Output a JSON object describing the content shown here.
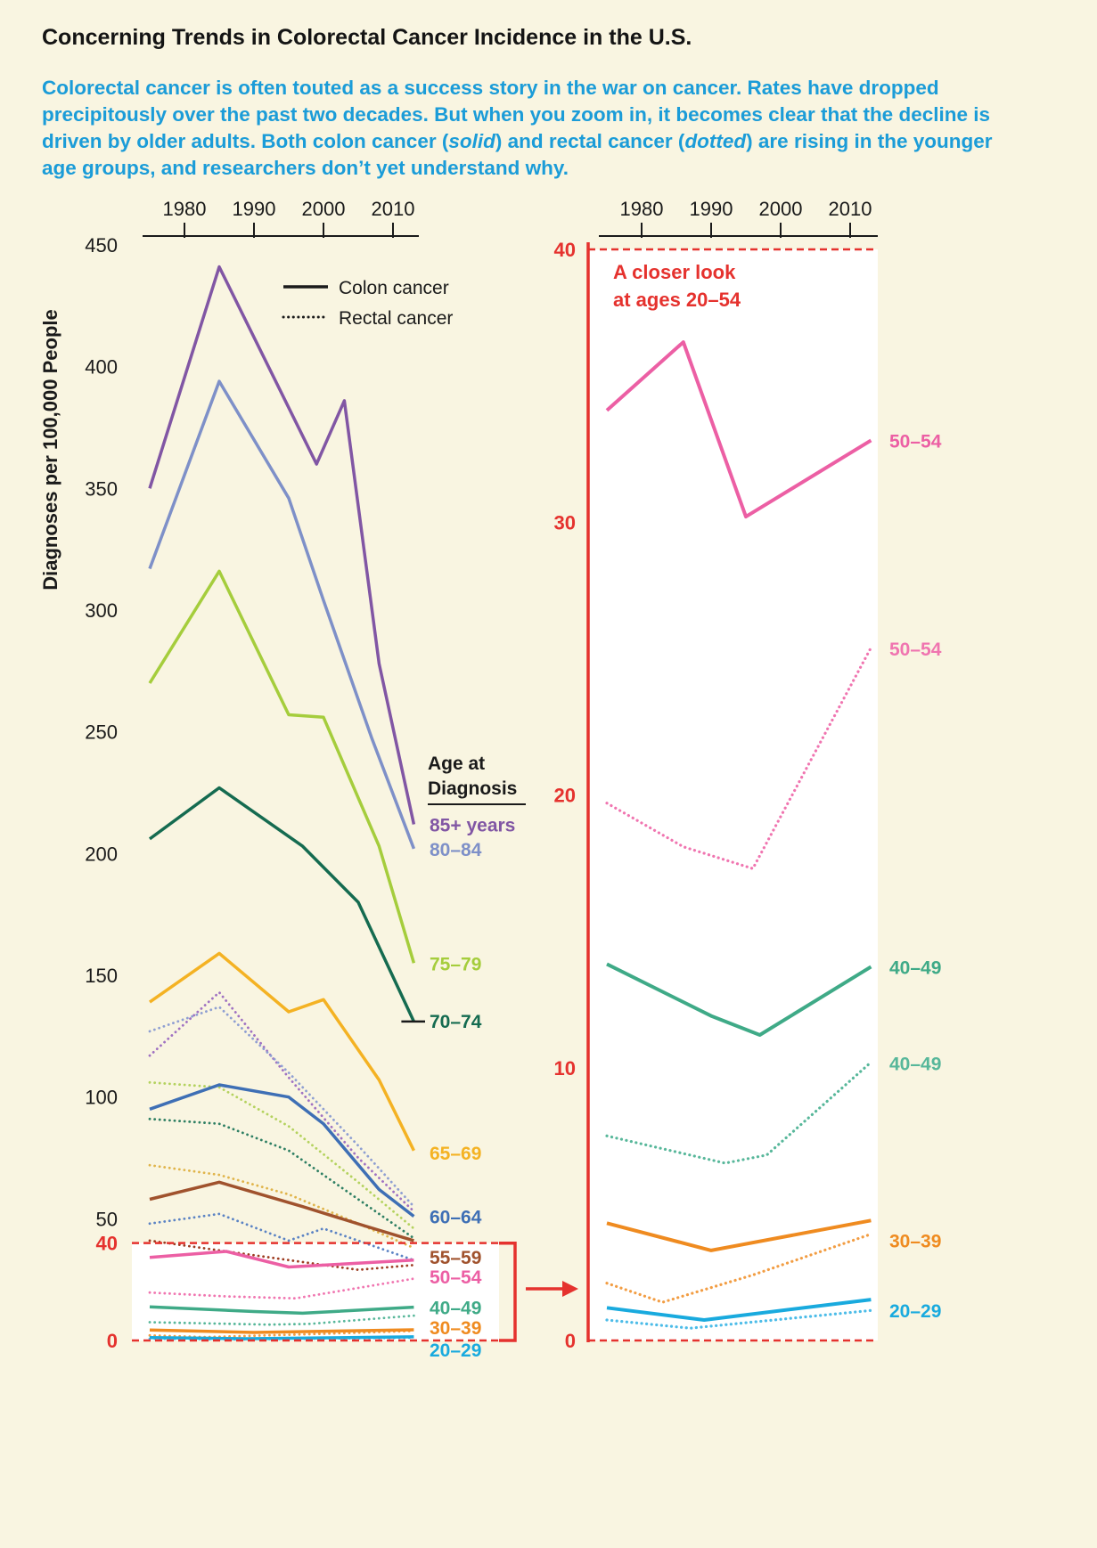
{
  "page": {
    "background": "#f9f5e1",
    "title": "Concerning Trends in Colorectal Cancer Incidence in the U.S.",
    "intro": {
      "color": "#1b9cd8",
      "part1": "Colorectal cancer is often touted as a success story in the war on cancer. Rates have dropped precipitously over the past two decades. But when you zoom in, it becomes clear that the decline is driven by older adults. Both colon cancer (",
      "em1": "solid",
      "part2": ") and rectal cancer (",
      "em2": "dotted",
      "part3": ") are rising in the younger age groups, and researchers don’t yet understand why."
    }
  },
  "colors": {
    "accent_red": "#e5322e",
    "axis_black": "#1a1a1a",
    "intro_blue": "#1b9cd8",
    "age_85plus": "#8156a4",
    "age_80_84": "#7e90c8",
    "age_75_79": "#a5cd3c",
    "age_70_74": "#156b50",
    "age_65_69": "#f4b223",
    "age_60_64": "#3e6fb5",
    "age_55_59": "#a0522d",
    "age_50_54": "#ec5fa4",
    "age_40_49": "#3faa87",
    "age_30_39": "#ef8b20",
    "age_20_29": "#19aade"
  },
  "chart_data": [
    {
      "id": "main",
      "type": "line",
      "ylabel": "Diagnoses per 100,000 People",
      "xlim": [
        1973.5,
        2015
      ],
      "ylim": [
        0,
        450
      ],
      "x_ticks": [
        "1980",
        "1990",
        "2000",
        "2010"
      ],
      "y_ticks": [
        50,
        100,
        150,
        200,
        250,
        300,
        350,
        400,
        450
      ],
      "y_ticks_highlight": [
        40,
        0
      ],
      "grid": false,
      "legend": [
        {
          "label": "Colon cancer",
          "style": "solid"
        },
        {
          "label": "Rectal cancer",
          "style": "dotted"
        }
      ],
      "age_key_title": [
        "Age at",
        "Diagnosis"
      ],
      "highlight_band": {
        "y_from": 0,
        "y_to": 40,
        "note": "A closer look at ages 20–54"
      },
      "series": [
        {
          "age": "85+ years",
          "cancer": "colon",
          "style": "solid",
          "color": "#8156a4",
          "label": "85+ years",
          "x": [
            1975,
            1985,
            1999,
            2003,
            2008,
            2013
          ],
          "y": [
            350,
            441,
            360,
            386,
            278,
            212
          ]
        },
        {
          "age": "80–84",
          "cancer": "colon",
          "style": "solid",
          "color": "#7e90c8",
          "label": "80–84",
          "x": [
            1975,
            1985,
            1995,
            2000,
            2007,
            2013
          ],
          "y": [
            317,
            394,
            346,
            304,
            247,
            202
          ]
        },
        {
          "age": "75–79",
          "cancer": "colon",
          "style": "solid",
          "color": "#a5cd3c",
          "label": "75–79",
          "x": [
            1975,
            1985,
            1995,
            2000,
            2008,
            2013
          ],
          "y": [
            270,
            316,
            257,
            256,
            203,
            155
          ]
        },
        {
          "age": "70–74",
          "cancer": "colon",
          "style": "solid",
          "color": "#156b50",
          "label": "70–74",
          "leader": true,
          "x": [
            1975,
            1985,
            1997,
            2005,
            2013
          ],
          "y": [
            206,
            227,
            203,
            180,
            131
          ]
        },
        {
          "age": "65–69",
          "cancer": "colon",
          "style": "solid",
          "color": "#f4b223",
          "label": "65–69",
          "x": [
            1975,
            1985,
            1995,
            2000,
            2008,
            2013
          ],
          "y": [
            139,
            159,
            135,
            140,
            107,
            78
          ]
        },
        {
          "age": "60–64",
          "cancer": "colon",
          "style": "solid",
          "color": "#3e6fb5",
          "label": "60–64",
          "x": [
            1975,
            1985,
            1995,
            2000,
            2008,
            2013
          ],
          "y": [
            95,
            105,
            100,
            89,
            62,
            51
          ]
        },
        {
          "age": "55–59",
          "cancer": "colon",
          "style": "solid",
          "color": "#a0522d",
          "label": "55–59",
          "x": [
            1975,
            1985,
            1997,
            2006,
            2013
          ],
          "y": [
            58,
            65,
            55,
            47,
            41
          ]
        },
        {
          "age": "50–54",
          "cancer": "colon",
          "style": "solid",
          "color": "#ec5fa4",
          "label": "50–54",
          "x": [
            1975,
            1986,
            1995,
            2013
          ],
          "y": [
            34.1,
            36.6,
            30.2,
            33
          ]
        },
        {
          "age": "40–49",
          "cancer": "colon",
          "style": "solid",
          "color": "#3faa87",
          "label": "40–49",
          "x": [
            1975,
            1990,
            1997,
            2013
          ],
          "y": [
            13.8,
            11.9,
            11.2,
            13.7
          ]
        },
        {
          "age": "30–39",
          "cancer": "colon",
          "style": "solid",
          "color": "#ef8b20",
          "label": "30–39",
          "x": [
            1975,
            1990,
            2013
          ],
          "y": [
            4.3,
            3.3,
            4.4
          ]
        },
        {
          "age": "20–29",
          "cancer": "colon",
          "style": "solid",
          "color": "#19aade",
          "label": "20–29",
          "x": [
            1975,
            1989,
            2013
          ],
          "y": [
            1.2,
            0.75,
            1.5
          ]
        },
        {
          "age": "85+ years",
          "cancer": "rectal",
          "style": "dotted",
          "color": "#a072c2",
          "x": [
            1975,
            1985,
            1995,
            2005,
            2013
          ],
          "y": [
            117,
            143,
            108,
            75,
            53
          ]
        },
        {
          "age": "80–84",
          "cancer": "rectal",
          "style": "dotted",
          "color": "#8f9fd2",
          "x": [
            1975,
            1985,
            1995,
            2005,
            2013
          ],
          "y": [
            127,
            137,
            110,
            80,
            55
          ]
        },
        {
          "age": "75–79",
          "cancer": "rectal",
          "style": "dotted",
          "color": "#b4d25e",
          "x": [
            1975,
            1985,
            1995,
            2005,
            2013
          ],
          "y": [
            106,
            104,
            88,
            65,
            46
          ]
        },
        {
          "age": "70–74",
          "cancer": "rectal",
          "style": "dotted",
          "color": "#2e7f63",
          "x": [
            1975,
            1985,
            1995,
            2005,
            2013
          ],
          "y": [
            91,
            89,
            78,
            58,
            42
          ]
        },
        {
          "age": "65–69",
          "cancer": "rectal",
          "style": "dotted",
          "color": "#e0b44a",
          "x": [
            1975,
            1985,
            1995,
            2005,
            2013
          ],
          "y": [
            72,
            68,
            60,
            48,
            38
          ]
        },
        {
          "age": "60–64",
          "cancer": "rectal",
          "style": "dotted",
          "color": "#5b83c4",
          "x": [
            1975,
            1985,
            1995,
            2000,
            2013
          ],
          "y": [
            48,
            52,
            41,
            46,
            33
          ]
        },
        {
          "age": "55–59",
          "cancer": "rectal",
          "style": "dotted",
          "color": "#9d3b20",
          "x": [
            1975,
            1990,
            2005,
            2013
          ],
          "y": [
            41,
            35,
            29,
            31
          ]
        },
        {
          "age": "50–54",
          "cancer": "rectal",
          "style": "dotted",
          "color": "#f075b0",
          "x": [
            1975,
            1986,
            1996,
            2013
          ],
          "y": [
            19.7,
            18.1,
            17.3,
            25.4
          ]
        },
        {
          "age": "40–49",
          "cancer": "rectal",
          "style": "dotted",
          "color": "#57b79a",
          "x": [
            1975,
            1992,
            1998,
            2013
          ],
          "y": [
            7.5,
            6.5,
            6.8,
            10.2
          ]
        },
        {
          "age": "30–39",
          "cancer": "rectal",
          "style": "dotted",
          "color": "#f29d43",
          "x": [
            1975,
            1983,
            1996,
            2013
          ],
          "y": [
            2.1,
            1.4,
            2.4,
            3.9
          ]
        },
        {
          "age": "20–29",
          "cancer": "rectal",
          "style": "dotted",
          "color": "#4cbce8",
          "x": [
            1975,
            1987,
            2013
          ],
          "y": [
            0.75,
            0.45,
            1.1
          ]
        }
      ]
    },
    {
      "id": "zoom",
      "type": "line",
      "title": "A closer look at ages 20–54",
      "title_lines": [
        "A closer look",
        "at ages 20–54"
      ],
      "xlim": [
        1973.5,
        2015
      ],
      "ylim": [
        0,
        40
      ],
      "x_ticks": [
        "1980",
        "1990",
        "2000",
        "2010"
      ],
      "y_ticks": [
        0,
        10,
        20,
        30,
        40
      ],
      "grid": false,
      "series": [
        {
          "age": "50–54",
          "cancer": "colon",
          "style": "solid",
          "color": "#ec5fa4",
          "label": "50–54",
          "x": [
            1975,
            1986,
            1995,
            2013
          ],
          "y": [
            34.1,
            36.6,
            30.2,
            33
          ]
        },
        {
          "age": "40–49",
          "cancer": "colon",
          "style": "solid",
          "color": "#3faa87",
          "label": "40–49",
          "x": [
            1975,
            1990,
            1997,
            2013
          ],
          "y": [
            13.8,
            11.9,
            11.2,
            13.7
          ]
        },
        {
          "age": "30–39",
          "cancer": "colon",
          "style": "solid",
          "color": "#ef8b20",
          "label": "30–39",
          "x": [
            1975,
            1990,
            2013
          ],
          "y": [
            4.3,
            3.3,
            4.4
          ]
        },
        {
          "age": "20–29",
          "cancer": "colon",
          "style": "solid",
          "color": "#19aade",
          "label": "20–29",
          "x": [
            1975,
            1989,
            2013
          ],
          "y": [
            1.2,
            0.75,
            1.5
          ]
        },
        {
          "age": "50–54",
          "cancer": "rectal",
          "style": "dotted",
          "color": "#f075b0",
          "label": "50–54",
          "x": [
            1975,
            1986,
            1996,
            2013
          ],
          "y": [
            19.7,
            18.1,
            17.3,
            25.4
          ]
        },
        {
          "age": "40–49",
          "cancer": "rectal",
          "style": "dotted",
          "color": "#57b79a",
          "label": "40–49",
          "x": [
            1975,
            1992,
            1998,
            2013
          ],
          "y": [
            7.5,
            6.5,
            6.8,
            10.2
          ]
        },
        {
          "age": "30–39",
          "cancer": "rectal",
          "style": "dotted",
          "color": "#f29d43",
          "x": [
            1975,
            1983,
            1996,
            2013
          ],
          "y": [
            2.1,
            1.4,
            2.4,
            3.9
          ]
        },
        {
          "age": "20–29",
          "cancer": "rectal",
          "style": "dotted",
          "color": "#4cbce8",
          "x": [
            1975,
            1987,
            2013
          ],
          "y": [
            0.75,
            0.45,
            1.1
          ]
        }
      ]
    }
  ]
}
